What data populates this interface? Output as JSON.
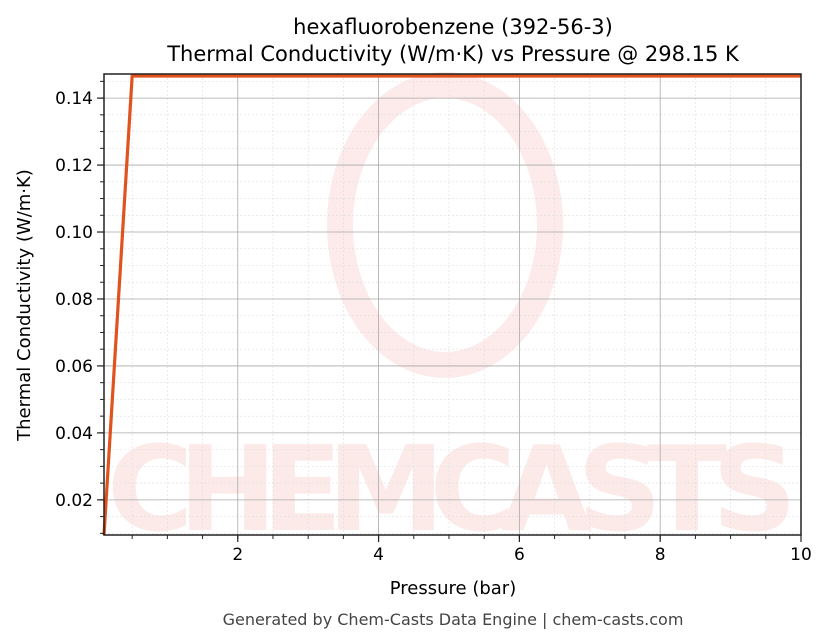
{
  "chart_data": {
    "type": "line",
    "title": "hexafluorobenzene (392-56-3)",
    "subtitle": "Thermal Conductivity (W/m·K) vs Pressure @ 298.15 K",
    "xlabel": "Pressure (bar)",
    "ylabel": "Thermal Conductivity (W/m·K)",
    "xlim": [
      0.1,
      10
    ],
    "ylim": [
      0.0095,
      0.1472
    ],
    "xticks": [
      2,
      4,
      6,
      8,
      10
    ],
    "yticks": [
      0.02,
      0.04,
      0.06,
      0.08,
      0.1,
      0.12,
      0.14
    ],
    "ytick_labels": [
      "0.02",
      "0.04",
      "0.06",
      "0.08",
      "0.10",
      "0.12",
      "0.14"
    ],
    "grid": true,
    "series": [
      {
        "color": "#e0531f",
        "x": [
          0.1,
          0.5,
          10
        ],
        "y": [
          0.0095,
          0.1466,
          0.1466
        ]
      }
    ],
    "watermark": "CHEMCASTS",
    "footer": "Generated by Chem-Casts Data Engine | chem-casts.com"
  }
}
